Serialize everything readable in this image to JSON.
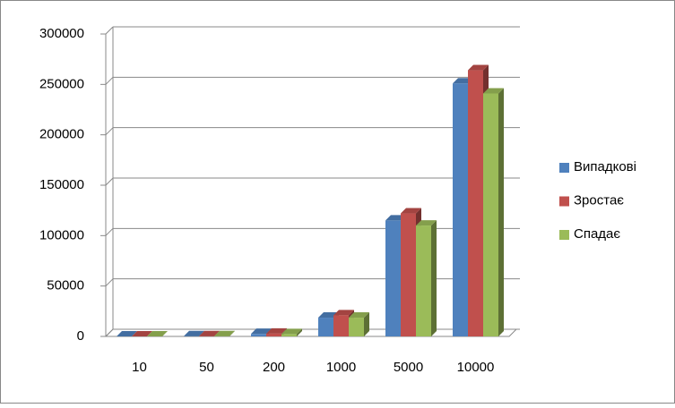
{
  "chart_data": {
    "type": "bar3d",
    "categories": [
      "10",
      "50",
      "200",
      "1000",
      "5000",
      "10000"
    ],
    "series": [
      {
        "name": "Випадкові",
        "color": "#4f81bd",
        "values": [
          10,
          200,
          2500,
          18600,
          115000,
          251000
        ]
      },
      {
        "name": "Зростає",
        "color": "#c0504d",
        "values": [
          12,
          220,
          2800,
          21000,
          122000,
          264000
        ]
      },
      {
        "name": "Спадає",
        "color": "#9bbb59",
        "values": [
          10,
          190,
          2300,
          18600,
          110000,
          241000
        ]
      }
    ],
    "ylim": [
      0,
      300000
    ],
    "yticks": [
      0,
      50000,
      100000,
      150000,
      200000,
      250000,
      300000
    ],
    "grid": true,
    "legend": "right"
  }
}
